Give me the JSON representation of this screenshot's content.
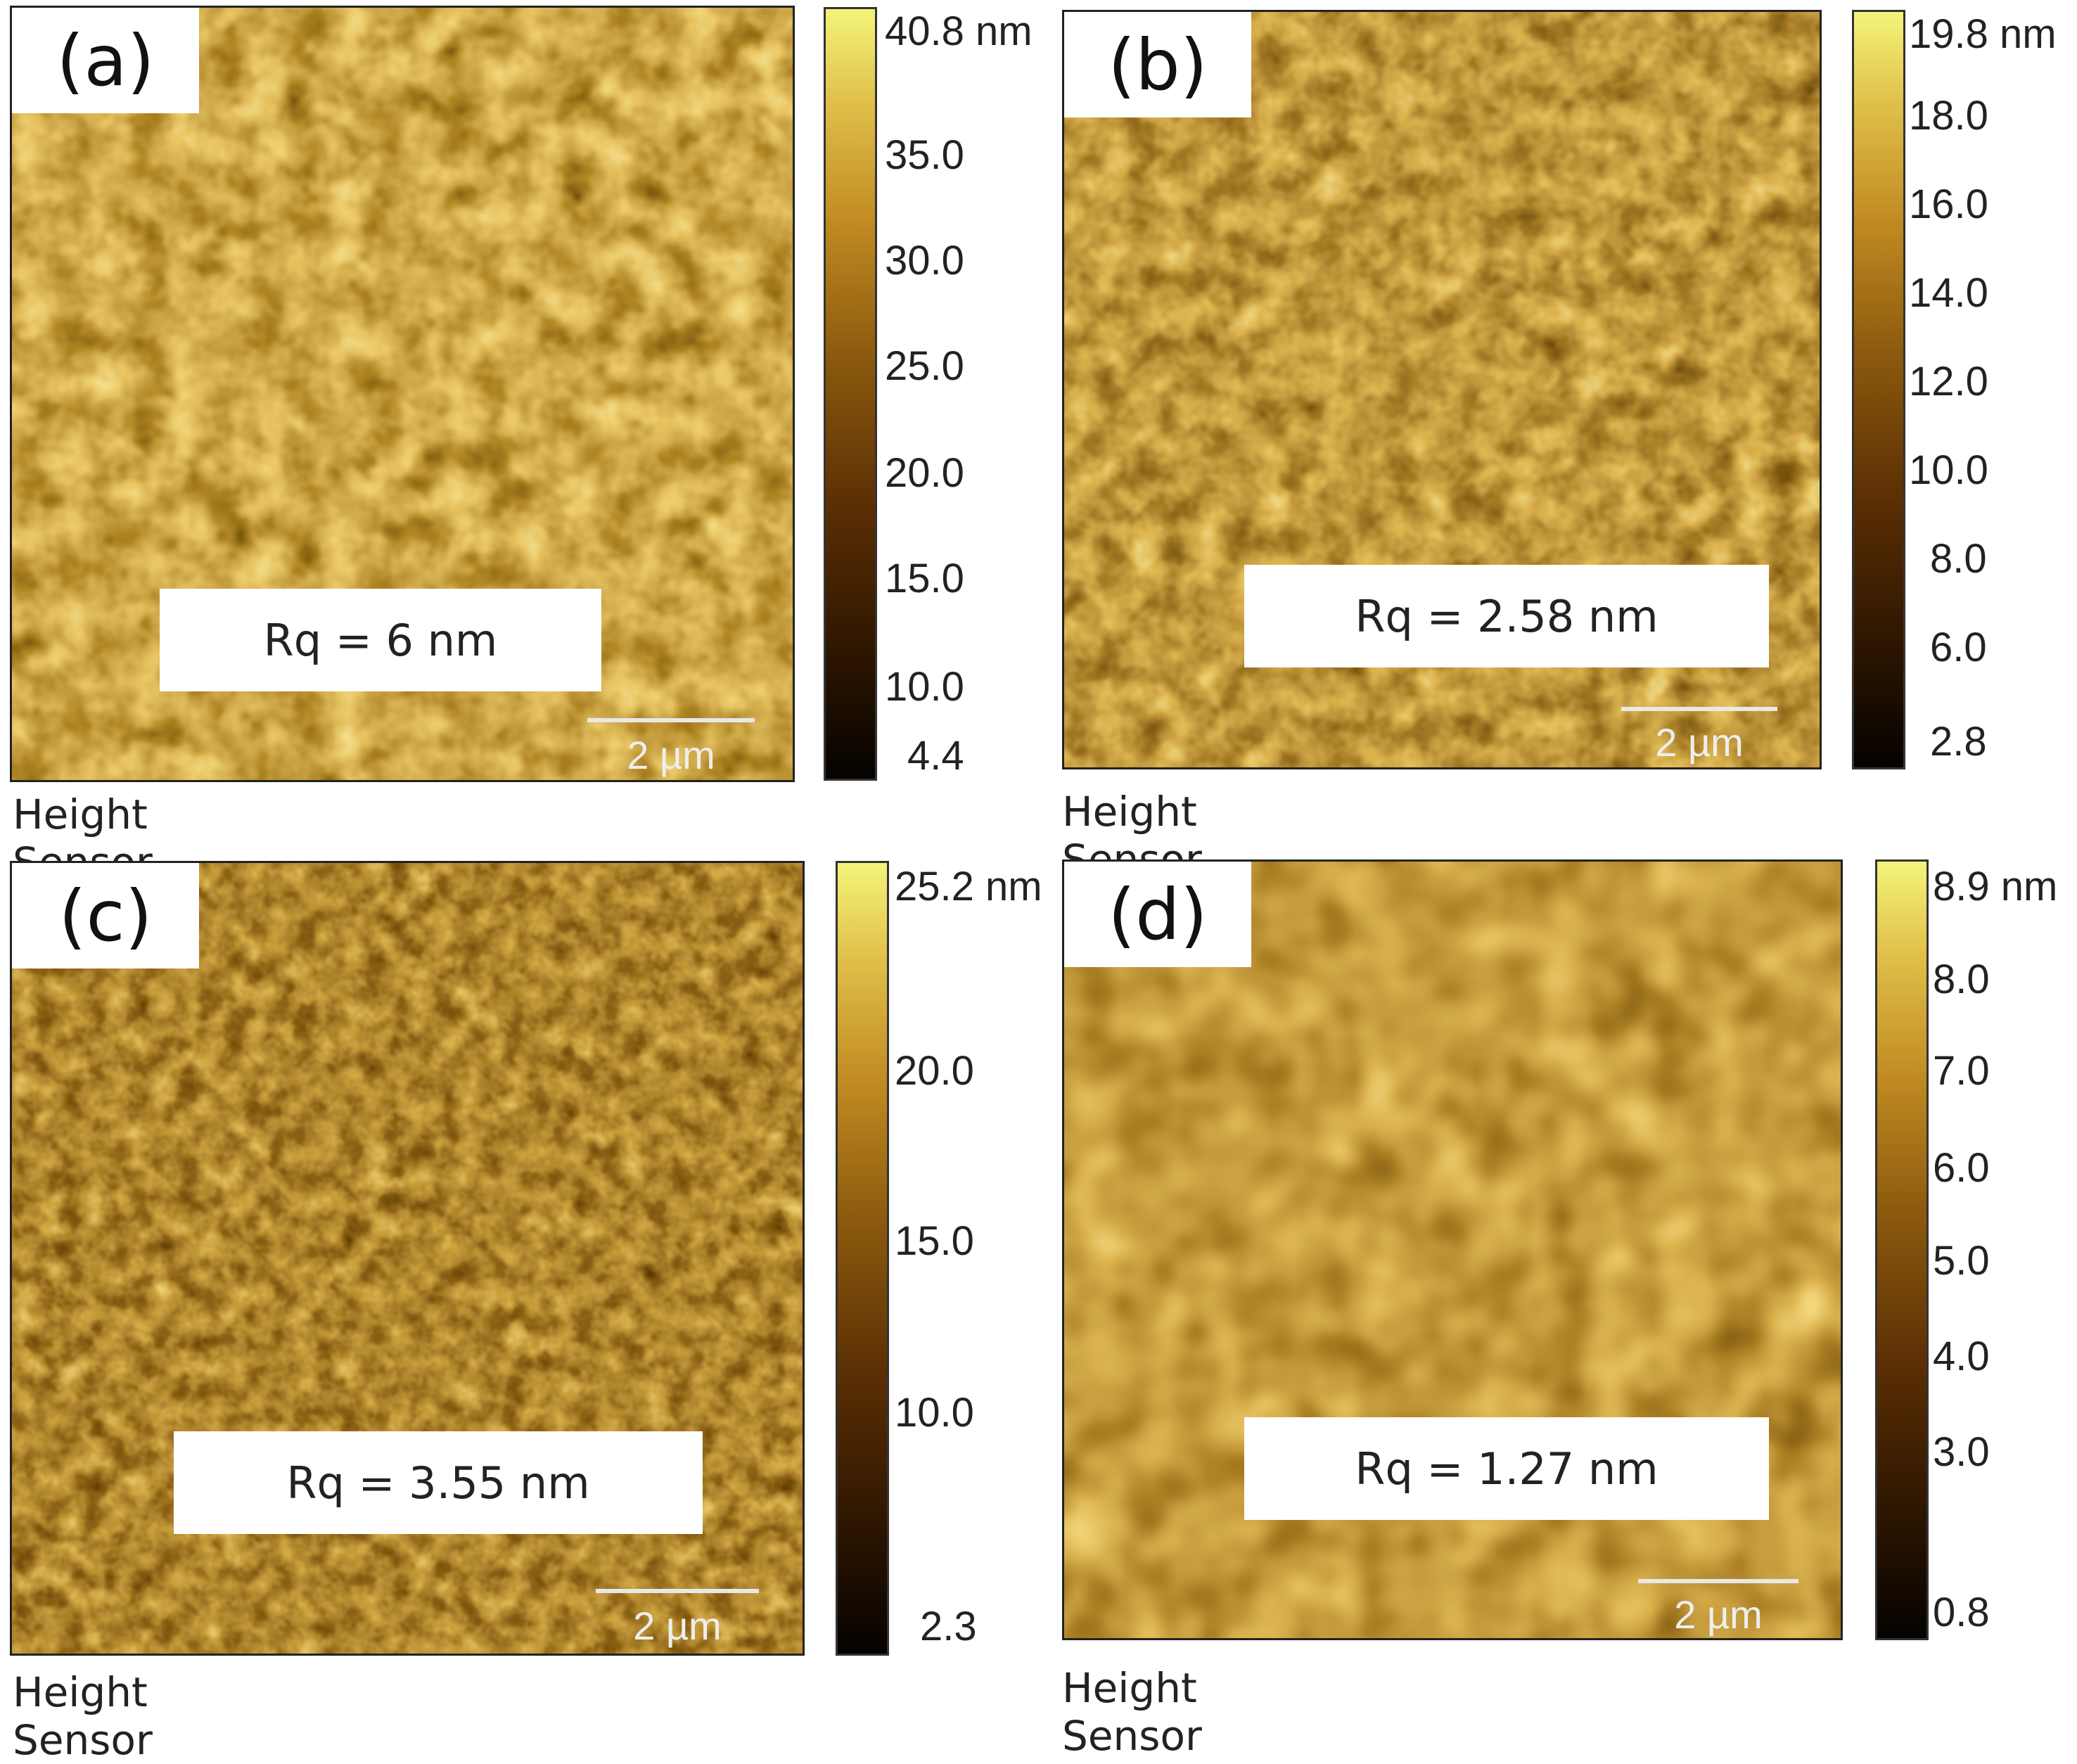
{
  "panels": [
    {
      "letter": "(a)",
      "rq": "Rq = 6 nm",
      "scale_bar": "2 µm",
      "caption": "Height Sensor",
      "colorbar_ticks": [
        "40.8 nm",
        "35.0",
        "30.0",
        "25.0",
        "20.0",
        "15.0",
        "10.0",
        "4.4"
      ]
    },
    {
      "letter": "(b)",
      "rq": "Rq = 2.58 nm",
      "scale_bar": "2 µm",
      "caption": "Height Sensor",
      "colorbar_ticks": [
        "19.8 nm",
        "18.0",
        "16.0",
        "14.0",
        "12.0",
        "10.0",
        "8.0",
        "6.0",
        "2.8"
      ]
    },
    {
      "letter": "(c)",
      "rq": "Rq = 3.55 nm",
      "scale_bar": "2 µm",
      "caption": "Height Sensor",
      "colorbar_ticks": [
        "25.2 nm",
        "20.0",
        "15.0",
        "10.0",
        "2.3"
      ]
    },
    {
      "letter": "(d)",
      "rq": "Rq = 1.27 nm",
      "scale_bar": "2 µm",
      "caption": "Height Sensor",
      "colorbar_ticks": [
        "8.9 nm",
        "8.0",
        "7.0",
        "6.0",
        "5.0",
        "4.0",
        "3.0",
        "0.8"
      ]
    }
  ],
  "colors": {
    "colormap_low": "#050200",
    "colormap_mid": "#8c5a0e",
    "colormap_high": "#f4f47a"
  }
}
